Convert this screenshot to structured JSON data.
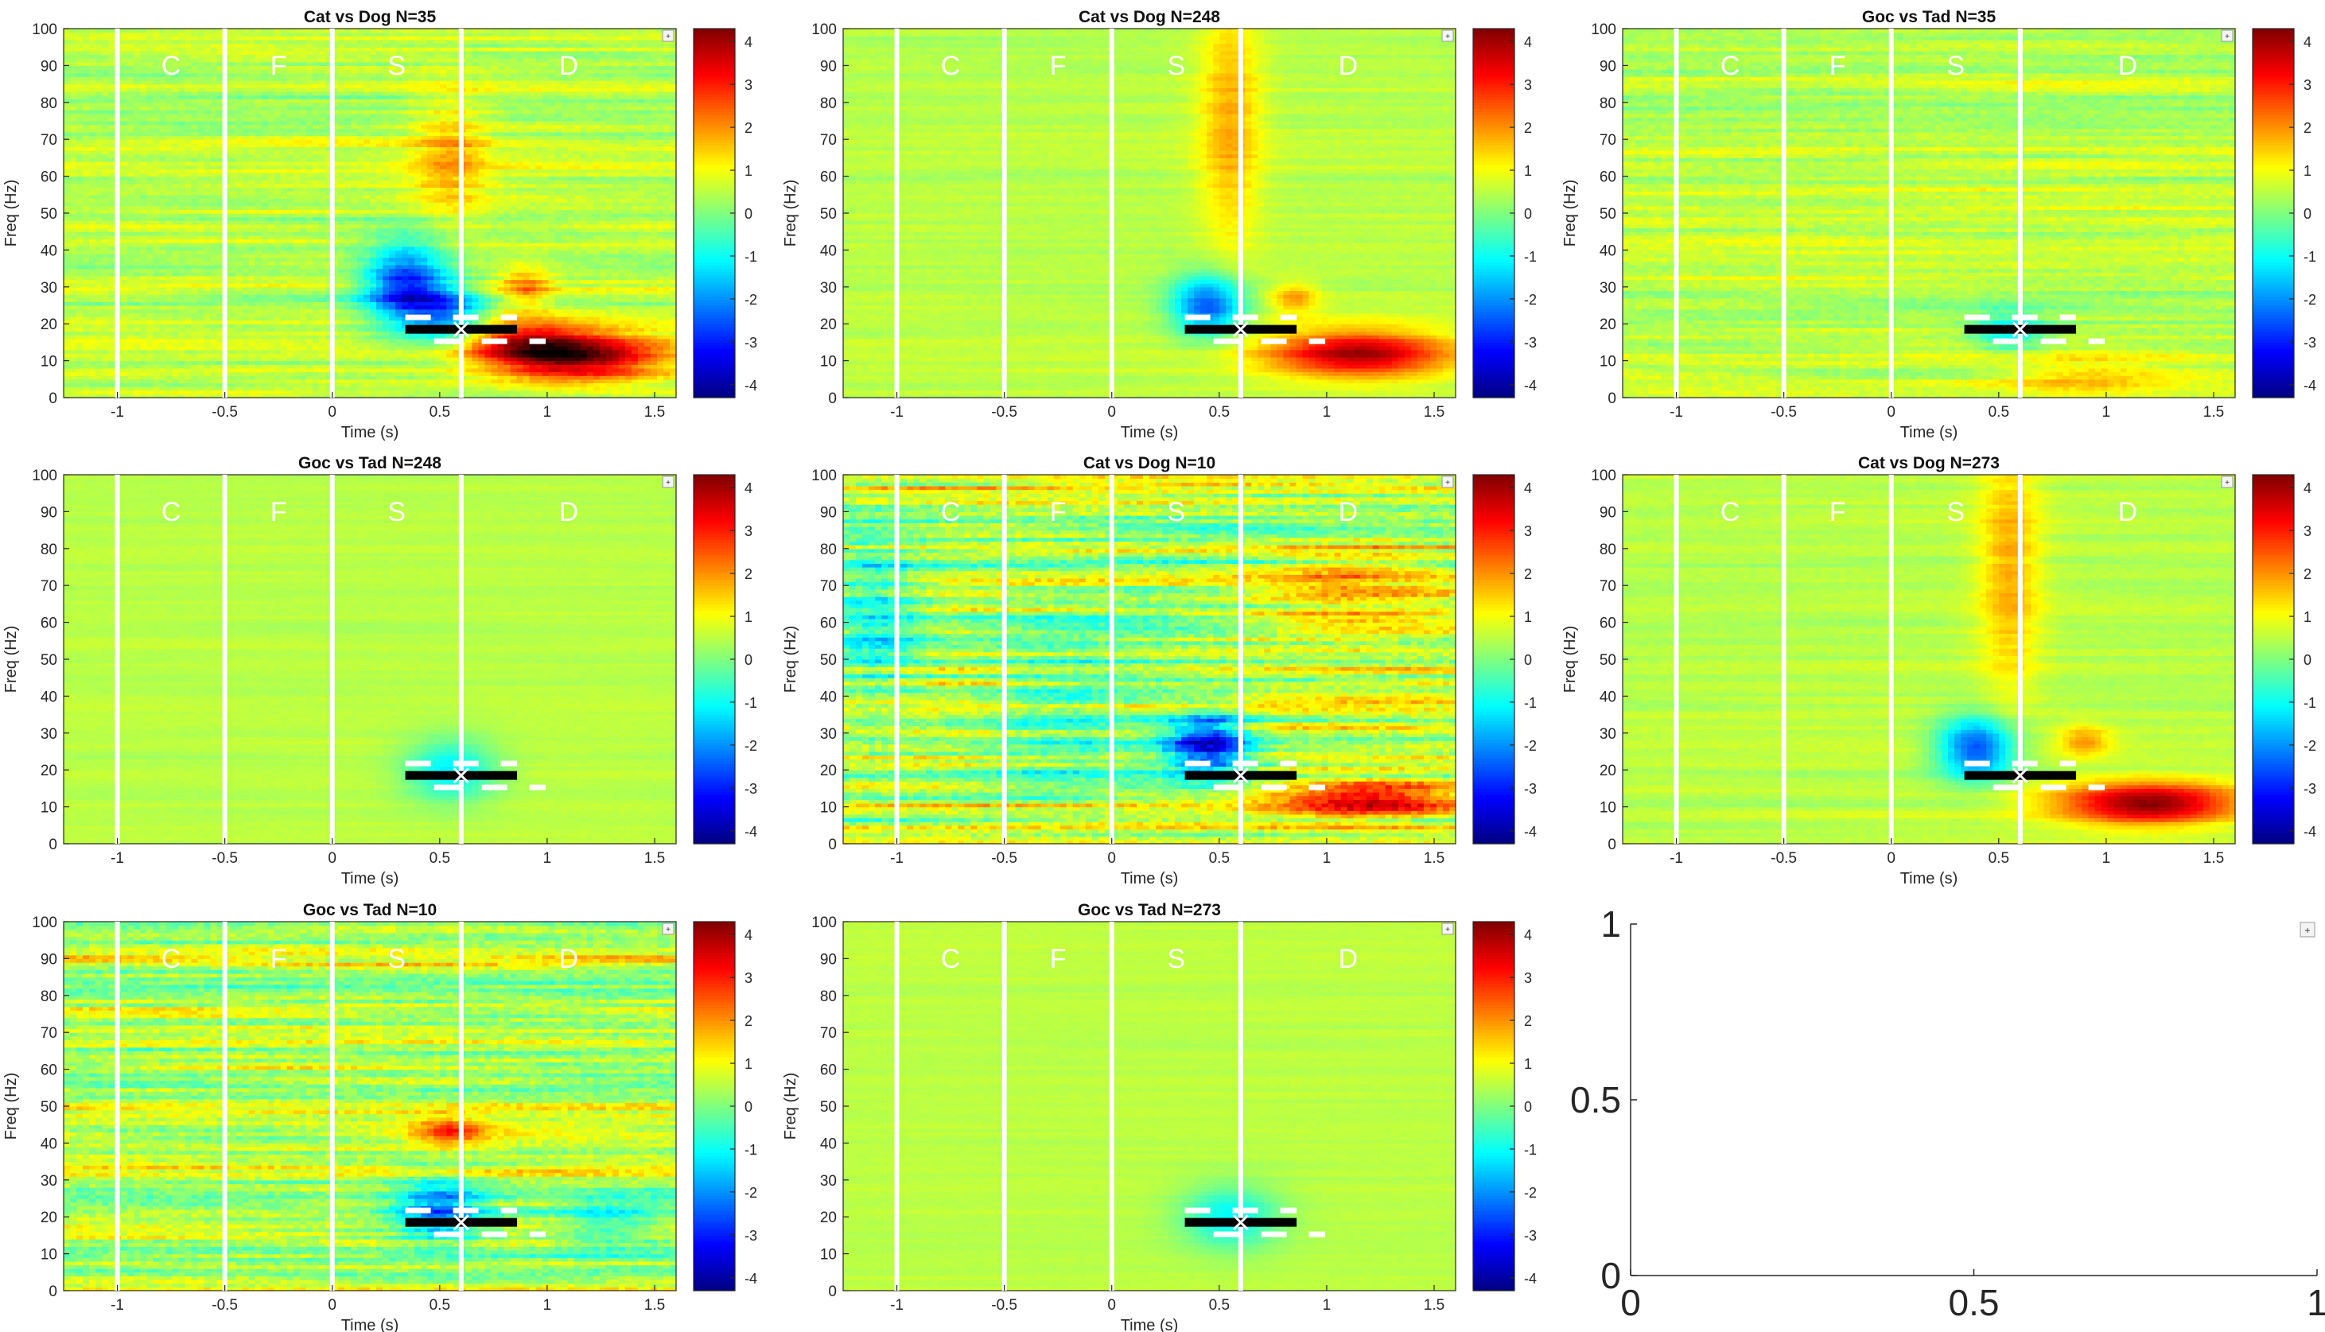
{
  "figure": {
    "panels": [
      {
        "title": "Cat vs Dog N=35"
      },
      {
        "title": "Cat vs Dog N=248"
      },
      {
        "title": "Goc vs Tad N=35"
      },
      {
        "title": "Goc vs Tad N=248"
      },
      {
        "title": "Cat vs Dog N=10"
      },
      {
        "title": "Cat vs Dog N=273"
      },
      {
        "title": "Goc vs Tad N=10"
      },
      {
        "title": "Goc vs Tad N=273"
      },
      {
        "title": ""
      }
    ]
  },
  "chart_data": [
    {
      "type": "heatmap",
      "title": "Cat vs Dog N=35",
      "xlabel": "Time (s)",
      "ylabel": "Freq (Hz)",
      "xlim": [
        -1.25,
        1.6
      ],
      "ylim": [
        0,
        100
      ],
      "xticks": [
        -1,
        -0.5,
        0,
        0.5,
        1,
        1.5
      ],
      "yticks": [
        0,
        10,
        20,
        30,
        40,
        50,
        60,
        70,
        80,
        90,
        100
      ],
      "clim": [
        -4.3,
        4.3
      ],
      "cticks": [
        -4,
        -3,
        -2,
        -1,
        0,
        1,
        2,
        3,
        4
      ],
      "colormap": "jet",
      "epoch_lines": [
        -1,
        -0.5,
        0,
        0.6
      ],
      "epoch_labels": [
        {
          "text": "C",
          "x": -0.75
        },
        {
          "text": "F",
          "x": -0.25
        },
        {
          "text": "S",
          "x": 0.3
        },
        {
          "text": "D",
          "x": 1.1
        }
      ],
      "marker": {
        "x": 0.6,
        "y": 18.5,
        "bar": [
          0.34,
          0.86
        ]
      },
      "blobs": [
        {
          "x": 0.35,
          "y": 30,
          "sx": 0.14,
          "sy": 8,
          "amp": -3.6
        },
        {
          "x": 0.55,
          "y": 22,
          "sx": 0.12,
          "sy": 5,
          "amp": -2.2
        },
        {
          "x": 1.15,
          "y": 11,
          "sx": 0.28,
          "sy": 4.5,
          "amp": 3.6
        },
        {
          "x": 0.9,
          "y": 15,
          "sx": 0.2,
          "sy": 4,
          "amp": 2.2
        },
        {
          "x": 0.9,
          "y": 30,
          "sx": 0.08,
          "sy": 4,
          "amp": 1.5
        },
        {
          "x": 0.55,
          "y": 65,
          "sx": 0.12,
          "sy": 12,
          "amp": 1.2
        }
      ],
      "noise": 0.45,
      "seed": 1
    },
    {
      "type": "heatmap",
      "title": "Cat vs Dog N=248",
      "xlabel": "Time (s)",
      "ylabel": "Freq (Hz)",
      "xlim": [
        -1.25,
        1.6
      ],
      "ylim": [
        0,
        100
      ],
      "xticks": [
        -1,
        -0.5,
        0,
        0.5,
        1,
        1.5
      ],
      "yticks": [
        0,
        10,
        20,
        30,
        40,
        50,
        60,
        70,
        80,
        90,
        100
      ],
      "clim": [
        -4.3,
        4.3
      ],
      "cticks": [
        -4,
        -3,
        -2,
        -1,
        0,
        1,
        2,
        3,
        4
      ],
      "colormap": "jet",
      "epoch_lines": [
        -1,
        -0.5,
        0,
        0.6
      ],
      "epoch_labels": [
        {
          "text": "C",
          "x": -0.75
        },
        {
          "text": "F",
          "x": -0.25
        },
        {
          "text": "S",
          "x": 0.3
        },
        {
          "text": "D",
          "x": 1.1
        }
      ],
      "marker": {
        "x": 0.6,
        "y": 18.5,
        "bar": [
          0.34,
          0.86
        ]
      },
      "blobs": [
        {
          "x": 0.45,
          "y": 25,
          "sx": 0.12,
          "sy": 6,
          "amp": -3.0
        },
        {
          "x": 1.15,
          "y": 12,
          "sx": 0.3,
          "sy": 4.5,
          "amp": 3.4
        },
        {
          "x": 0.85,
          "y": 27,
          "sx": 0.08,
          "sy": 3,
          "amp": 1.4
        },
        {
          "x": 0.55,
          "y": 75,
          "sx": 0.1,
          "sy": 25,
          "amp": 1.3
        }
      ],
      "noise": 0.2,
      "seed": 2
    },
    {
      "type": "heatmap",
      "title": "Goc vs Tad N=35",
      "xlabel": "Time (s)",
      "ylabel": "Freq (Hz)",
      "xlim": [
        -1.25,
        1.6
      ],
      "ylim": [
        0,
        100
      ],
      "xticks": [
        -1,
        -0.5,
        0,
        0.5,
        1,
        1.5
      ],
      "yticks": [
        0,
        10,
        20,
        30,
        40,
        50,
        60,
        70,
        80,
        90,
        100
      ],
      "clim": [
        -4.3,
        4.3
      ],
      "cticks": [
        -4,
        -3,
        -2,
        -1,
        0,
        1,
        2,
        3,
        4
      ],
      "colormap": "jet",
      "epoch_lines": [
        -1,
        -0.5,
        0,
        0.6
      ],
      "epoch_labels": [
        {
          "text": "C",
          "x": -0.75
        },
        {
          "text": "F",
          "x": -0.25
        },
        {
          "text": "S",
          "x": 0.3
        },
        {
          "text": "D",
          "x": 1.1
        }
      ],
      "marker": {
        "x": 0.6,
        "y": 18.5,
        "bar": [
          0.34,
          0.86
        ]
      },
      "blobs": [
        {
          "x": 0.55,
          "y": 18,
          "sx": 0.12,
          "sy": 4,
          "amp": -1.5
        },
        {
          "x": 0.9,
          "y": 5,
          "sx": 0.3,
          "sy": 4,
          "amp": 0.9
        }
      ],
      "noise": 0.45,
      "seed": 3
    },
    {
      "type": "heatmap",
      "title": "Goc vs Tad N=248",
      "xlabel": "Time (s)",
      "ylabel": "Freq (Hz)",
      "xlim": [
        -1.25,
        1.6
      ],
      "ylim": [
        0,
        100
      ],
      "xticks": [
        -1,
        -0.5,
        0,
        0.5,
        1,
        1.5
      ],
      "yticks": [
        0,
        10,
        20,
        30,
        40,
        50,
        60,
        70,
        80,
        90,
        100
      ],
      "clim": [
        -4.3,
        4.3
      ],
      "cticks": [
        -4,
        -3,
        -2,
        -1,
        0,
        1,
        2,
        3,
        4
      ],
      "colormap": "jet",
      "epoch_lines": [
        -1,
        -0.5,
        0,
        0.6
      ],
      "epoch_labels": [
        {
          "text": "C",
          "x": -0.75
        },
        {
          "text": "F",
          "x": -0.25
        },
        {
          "text": "S",
          "x": 0.3
        },
        {
          "text": "D",
          "x": 1.1
        }
      ],
      "marker": {
        "x": 0.6,
        "y": 18.5,
        "bar": [
          0.34,
          0.86
        ]
      },
      "blobs": [
        {
          "x": 0.55,
          "y": 20,
          "sx": 0.15,
          "sy": 6,
          "amp": -1.7
        }
      ],
      "noise": 0.12,
      "seed": 4
    },
    {
      "type": "heatmap",
      "title": "Cat vs Dog N=10",
      "xlabel": "Time (s)",
      "ylabel": "Freq (Hz)",
      "xlim": [
        -1.25,
        1.6
      ],
      "ylim": [
        0,
        100
      ],
      "xticks": [
        -1,
        -0.5,
        0,
        0.5,
        1,
        1.5
      ],
      "yticks": [
        0,
        10,
        20,
        30,
        40,
        50,
        60,
        70,
        80,
        90,
        100
      ],
      "clim": [
        -4.3,
        4.3
      ],
      "cticks": [
        -4,
        -3,
        -2,
        -1,
        0,
        1,
        2,
        3,
        4
      ],
      "colormap": "jet",
      "epoch_lines": [
        -1,
        -0.5,
        0,
        0.6
      ],
      "epoch_labels": [
        {
          "text": "C",
          "x": -0.75
        },
        {
          "text": "F",
          "x": -0.25
        },
        {
          "text": "S",
          "x": 0.3
        },
        {
          "text": "D",
          "x": 1.1
        }
      ],
      "marker": {
        "x": 0.6,
        "y": 18.5,
        "bar": [
          0.34,
          0.86
        ]
      },
      "blobs": [
        {
          "x": 0.45,
          "y": 27,
          "sx": 0.14,
          "sy": 6,
          "amp": -3.8
        },
        {
          "x": 1.2,
          "y": 12,
          "sx": 0.3,
          "sy": 4,
          "amp": 2.8
        },
        {
          "x": -1.1,
          "y": 60,
          "sx": 0.15,
          "sy": 15,
          "amp": -1.5
        },
        {
          "x": -0.2,
          "y": 35,
          "sx": 0.3,
          "sy": 15,
          "amp": -1.0
        },
        {
          "x": 1.1,
          "y": 70,
          "sx": 0.3,
          "sy": 10,
          "amp": 1.2
        }
      ],
      "noise": 1.0,
      "seed": 5
    },
    {
      "type": "heatmap",
      "title": "Cat vs Dog N=273",
      "xlabel": "Time (s)",
      "ylabel": "Freq (Hz)",
      "xlim": [
        -1.25,
        1.6
      ],
      "ylim": [
        0,
        100
      ],
      "xticks": [
        -1,
        -0.5,
        0,
        0.5,
        1,
        1.5
      ],
      "yticks": [
        0,
        10,
        20,
        30,
        40,
        50,
        60,
        70,
        80,
        90,
        100
      ],
      "clim": [
        -4.3,
        4.3
      ],
      "cticks": [
        -4,
        -3,
        -2,
        -1,
        0,
        1,
        2,
        3,
        4
      ],
      "colormap": "jet",
      "epoch_lines": [
        -1,
        -0.5,
        0,
        0.6
      ],
      "epoch_labels": [
        {
          "text": "C",
          "x": -0.75
        },
        {
          "text": "F",
          "x": -0.25
        },
        {
          "text": "S",
          "x": 0.3
        },
        {
          "text": "D",
          "x": 1.1
        }
      ],
      "marker": {
        "x": 0.6,
        "y": 18.5,
        "bar": [
          0.34,
          0.86
        ]
      },
      "blobs": [
        {
          "x": 0.4,
          "y": 26,
          "sx": 0.13,
          "sy": 6,
          "amp": -3.2
        },
        {
          "x": 1.2,
          "y": 11,
          "sx": 0.3,
          "sy": 4,
          "amp": 3.8
        },
        {
          "x": 0.9,
          "y": 28,
          "sx": 0.08,
          "sy": 3,
          "amp": 1.4
        },
        {
          "x": 0.55,
          "y": 75,
          "sx": 0.1,
          "sy": 25,
          "amp": 1.3
        }
      ],
      "noise": 0.2,
      "seed": 6
    },
    {
      "type": "heatmap",
      "title": "Goc vs Tad N=10",
      "xlabel": "Time (s)",
      "ylabel": "Freq (Hz)",
      "xlim": [
        -1.25,
        1.6
      ],
      "ylim": [
        0,
        100
      ],
      "xticks": [
        -1,
        -0.5,
        0,
        0.5,
        1,
        1.5
      ],
      "yticks": [
        0,
        10,
        20,
        30,
        40,
        50,
        60,
        70,
        80,
        90,
        100
      ],
      "clim": [
        -4.3,
        4.3
      ],
      "cticks": [
        -4,
        -3,
        -2,
        -1,
        0,
        1,
        2,
        3,
        4
      ],
      "colormap": "jet",
      "epoch_lines": [
        -1,
        -0.5,
        0,
        0.6
      ],
      "epoch_labels": [
        {
          "text": "C",
          "x": -0.75
        },
        {
          "text": "F",
          "x": -0.25
        },
        {
          "text": "S",
          "x": 0.3
        },
        {
          "text": "D",
          "x": 1.1
        }
      ],
      "marker": {
        "x": 0.6,
        "y": 18.5,
        "bar": [
          0.34,
          0.86
        ]
      },
      "blobs": [
        {
          "x": 0.5,
          "y": 22,
          "sx": 0.15,
          "sy": 6,
          "amp": -2.6
        },
        {
          "x": 0.55,
          "y": 43,
          "sx": 0.12,
          "sy": 3,
          "amp": 2.0
        },
        {
          "x": 1.3,
          "y": 18,
          "sx": 0.2,
          "sy": 5,
          "amp": -1.3
        }
      ],
      "noise": 0.85,
      "seed": 7
    },
    {
      "type": "heatmap",
      "title": "Goc vs Tad N=273",
      "xlabel": "Time (s)",
      "ylabel": "Freq (Hz)",
      "xlim": [
        -1.25,
        1.6
      ],
      "ylim": [
        0,
        100
      ],
      "xticks": [
        -1,
        -0.5,
        0,
        0.5,
        1,
        1.5
      ],
      "yticks": [
        0,
        10,
        20,
        30,
        40,
        50,
        60,
        70,
        80,
        90,
        100
      ],
      "clim": [
        -4.3,
        4.3
      ],
      "cticks": [
        -4,
        -3,
        -2,
        -1,
        0,
        1,
        2,
        3,
        4
      ],
      "colormap": "jet",
      "epoch_lines": [
        -1,
        -0.5,
        0,
        0.6
      ],
      "epoch_labels": [
        {
          "text": "C",
          "x": -0.75
        },
        {
          "text": "F",
          "x": -0.25
        },
        {
          "text": "S",
          "x": 0.3
        },
        {
          "text": "D",
          "x": 1.1
        }
      ],
      "marker": {
        "x": 0.6,
        "y": 18.5,
        "bar": [
          0.34,
          0.86
        ]
      },
      "blobs": [
        {
          "x": 0.55,
          "y": 20,
          "sx": 0.16,
          "sy": 6,
          "amp": -1.6
        }
      ],
      "noise": 0.1,
      "seed": 8
    },
    {
      "type": "line",
      "title": "",
      "empty": true,
      "xlim": [
        0,
        1
      ],
      "ylim": [
        0,
        1
      ],
      "xticks": [
        0,
        0.5,
        1
      ],
      "yticks": [
        0,
        0.5,
        1
      ]
    }
  ]
}
